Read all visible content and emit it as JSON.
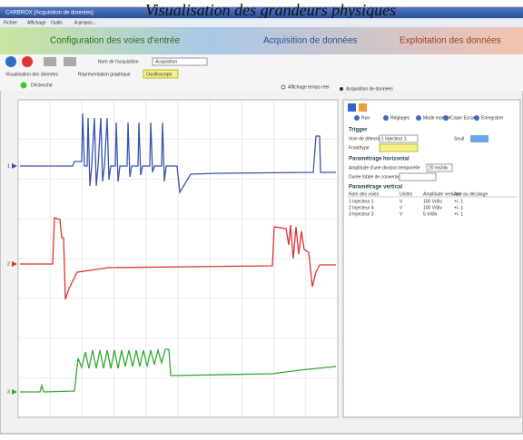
{
  "overlay_title": "Visualisation des grandeurs physiques",
  "window_title": "CARBROX [Acquisition de données]",
  "menu": [
    "Fichier",
    "Affichage",
    "Outils",
    "A propos..."
  ],
  "tabs": [
    "Configuration des voies d'entrée",
    "Acquisition de données",
    "Exploitation des données"
  ],
  "toolbar": {
    "acquisition_name_label": "Nom de l'acquisition",
    "acquisition_name": "Acquisition",
    "view_label": "Visualisation des données",
    "representation_label": "Représentation graphique",
    "representation": "Oscilloscope",
    "status": "Déclenché",
    "realtime": "Affichage temps réel",
    "mode": "Acquisition de données"
  },
  "channels": [
    "1",
    "2",
    "3"
  ],
  "panel": {
    "buttons": [
      "Run",
      "Réglages",
      "Mode manuel",
      "Copie Ecran",
      "Enregistrer"
    ],
    "trigger": {
      "heading": "Trigger",
      "source_label": "Voie de détection",
      "source": "1 Injecteur 1",
      "edge_label": "Front/type",
      "threshold_label": "Seuil"
    },
    "horizontal": {
      "heading": "Paramétrage horizontal",
      "division_label": "Amplitude d'une division temporelle",
      "division": "20 ms/div",
      "duration_label": "Durée totale de conversion"
    },
    "vertical": {
      "heading": "Paramétrage vertical",
      "columns": [
        "Nom des voies",
        "Unités",
        "Amplitude verticale",
        "Axe au décalage"
      ],
      "rows": [
        [
          "1 Injecteur 1",
          "V",
          "100 V/div",
          "+/- 1"
        ],
        [
          "2 Injecteur 4",
          "V",
          "100 V/div",
          "+/- 1"
        ],
        [
          "3 Injecteur 3",
          "V",
          "5 V/div",
          "+/- 1"
        ]
      ]
    }
  }
}
